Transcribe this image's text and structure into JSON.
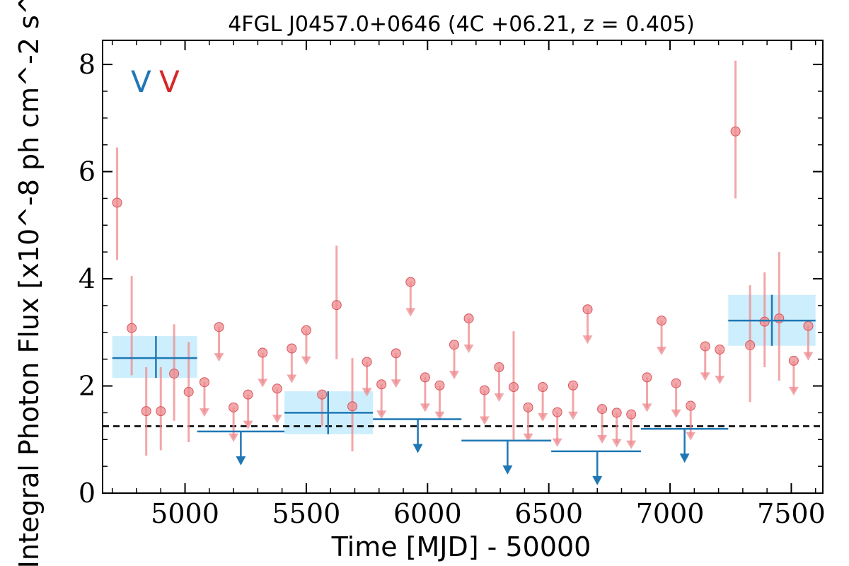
{
  "chart_data": {
    "type": "scatter",
    "title": "4FGL J0457.0+0646 (4C +06.21, z = 0.405)",
    "xlabel": "Time [MJD] - 50000",
    "ylabel": "Integral Photon Flux [x10^-8 ph cm^-2 s^-1]",
    "xlim": [
      4660,
      7630
    ],
    "ylim": [
      0,
      8.45
    ],
    "xticks": [
      5000,
      5500,
      6000,
      6500,
      7000,
      7500
    ],
    "yticks": [
      0,
      2,
      4,
      6,
      8
    ],
    "grid": false,
    "legend": {
      "placement": "top-left",
      "entries": [
        {
          "text": "V",
          "color": "#1f77b4"
        },
        {
          "text": "V",
          "color": "#d62728"
        }
      ]
    },
    "reference_line": {
      "y": 1.25,
      "style": "dashed",
      "color": "#000000"
    },
    "colors": {
      "long_bins": "#1f77b4",
      "long_bins_fill": "#cdeefc",
      "short_bins": "#ee8a8e"
    },
    "series": [
      {
        "kind": "long_bins",
        "detections": [
          {
            "x": 4880,
            "x_lo": 4700,
            "x_hi": 5050,
            "y": 2.52,
            "y_lo": 2.15,
            "y_hi": 2.93
          },
          {
            "x": 5590,
            "x_lo": 5410,
            "x_hi": 5775,
            "y": 1.5,
            "y_lo": 1.1,
            "y_hi": 1.9
          },
          {
            "x": 7420,
            "x_lo": 7240,
            "x_hi": 7600,
            "y": 3.22,
            "y_lo": 2.75,
            "y_hi": 3.7
          }
        ],
        "upper_limits": [
          {
            "x": 5230,
            "x_lo": 5050,
            "x_hi": 5410,
            "y": 1.15
          },
          {
            "x": 5960,
            "x_lo": 5775,
            "x_hi": 6140,
            "y": 1.38
          },
          {
            "x": 6330,
            "x_lo": 6140,
            "x_hi": 6510,
            "y": 0.98
          },
          {
            "x": 6700,
            "x_lo": 6510,
            "x_hi": 6880,
            "y": 0.78
          },
          {
            "x": 7060,
            "x_lo": 6880,
            "x_hi": 7240,
            "y": 1.2
          }
        ]
      },
      {
        "kind": "short_bins",
        "detections": [
          {
            "x": 4720,
            "y": 5.42,
            "y_lo": 4.35,
            "y_hi": 6.45
          },
          {
            "x": 4780,
            "y": 3.08,
            "y_lo": 2.2,
            "y_hi": 4.05
          },
          {
            "x": 4840,
            "y": 1.53,
            "y_lo": 0.7,
            "y_hi": 2.35
          },
          {
            "x": 4900,
            "y": 1.53,
            "y_lo": 0.8,
            "y_hi": 2.35
          },
          {
            "x": 4955,
            "y": 2.23,
            "y_lo": 1.35,
            "y_hi": 3.15
          },
          {
            "x": 5015,
            "y": 1.89,
            "y_lo": 0.95,
            "y_hi": 2.82
          },
          {
            "x": 5565,
            "y": 1.84,
            "y_lo": 1.25,
            "y_hi": 1.84
          },
          {
            "x": 5625,
            "y": 3.51,
            "y_lo": 2.5,
            "y_hi": 4.62
          },
          {
            "x": 5690,
            "y": 1.62,
            "y_lo": 0.78,
            "y_hi": 2.52
          },
          {
            "x": 6355,
            "y": 1.98,
            "y_lo": 1.0,
            "y_hi": 3.02
          },
          {
            "x": 7270,
            "y": 6.75,
            "y_lo": 5.5,
            "y_hi": 8.07
          },
          {
            "x": 7330,
            "y": 2.76,
            "y_lo": 1.7,
            "y_hi": 3.88
          },
          {
            "x": 7390,
            "y": 3.2,
            "y_lo": 2.35,
            "y_hi": 4.12
          },
          {
            "x": 7450,
            "y": 3.26,
            "y_lo": 2.1,
            "y_hi": 4.5
          }
        ],
        "upper_limits": [
          {
            "x": 5080,
            "y": 2.07
          },
          {
            "x": 5140,
            "y": 3.1
          },
          {
            "x": 5200,
            "y": 1.6
          },
          {
            "x": 5260,
            "y": 1.84
          },
          {
            "x": 5320,
            "y": 2.62
          },
          {
            "x": 5380,
            "y": 1.95
          },
          {
            "x": 5440,
            "y": 2.7
          },
          {
            "x": 5500,
            "y": 3.04
          },
          {
            "x": 5750,
            "y": 2.45
          },
          {
            "x": 5810,
            "y": 2.03
          },
          {
            "x": 5870,
            "y": 2.61
          },
          {
            "x": 5930,
            "y": 3.94
          },
          {
            "x": 5990,
            "y": 2.16
          },
          {
            "x": 6050,
            "y": 2.01
          },
          {
            "x": 6110,
            "y": 2.77
          },
          {
            "x": 6170,
            "y": 3.26
          },
          {
            "x": 6235,
            "y": 1.92
          },
          {
            "x": 6295,
            "y": 2.35
          },
          {
            "x": 6415,
            "y": 1.6
          },
          {
            "x": 6475,
            "y": 1.98
          },
          {
            "x": 6535,
            "y": 1.51
          },
          {
            "x": 6600,
            "y": 2.01
          },
          {
            "x": 6660,
            "y": 3.43
          },
          {
            "x": 6720,
            "y": 1.57
          },
          {
            "x": 6780,
            "y": 1.5
          },
          {
            "x": 6840,
            "y": 1.47
          },
          {
            "x": 6905,
            "y": 2.16
          },
          {
            "x": 6965,
            "y": 3.22
          },
          {
            "x": 7025,
            "y": 2.05
          },
          {
            "x": 7085,
            "y": 1.63
          },
          {
            "x": 7145,
            "y": 2.74
          },
          {
            "x": 7205,
            "y": 2.68
          },
          {
            "x": 7510,
            "y": 2.47
          },
          {
            "x": 7570,
            "y": 3.12
          }
        ]
      }
    ]
  }
}
